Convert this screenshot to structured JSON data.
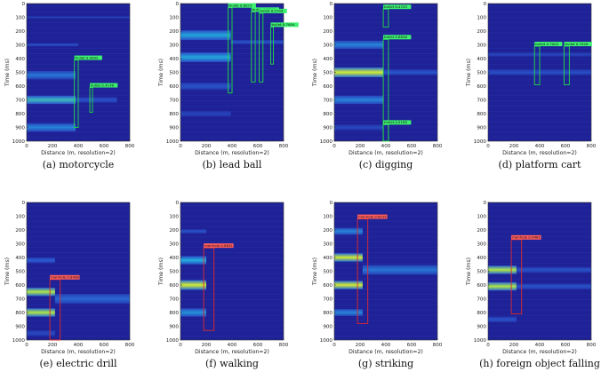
{
  "colors": {
    "background": "#1f2196",
    "stripe_dim": "#2b48c4",
    "stripe_mid": "#23a6d9",
    "stripe_hot": "#f2f21a",
    "box_green": "#22dd44",
    "box_red": "#e02a2a",
    "label_green": "#3df070",
    "label_red": "#ff5d5d"
  },
  "chart_data": [
    {
      "type": "heatmap",
      "caption": "(a)  motorcycle",
      "xlabel": "Distance (m, resolution=2)",
      "ylabel": "Time (ms)",
      "xlim": [
        0,
        800
      ],
      "ylim": [
        0,
        1000
      ],
      "xticks": [
        "0",
        "200",
        "400",
        "600",
        "800"
      ],
      "yticks": [
        "0",
        "100",
        "200",
        "300",
        "400",
        "500",
        "600",
        "700",
        "800",
        "900",
        "1000"
      ],
      "stripes": [
        {
          "t": 100,
          "h": 15,
          "x0": 0,
          "x1": 800,
          "level": 0.22
        },
        {
          "t": 300,
          "h": 20,
          "x0": 0,
          "x1": 400,
          "level": 0.3
        },
        {
          "t": 520,
          "h": 60,
          "x0": 0,
          "x1": 380,
          "level": 0.45
        },
        {
          "t": 700,
          "h": 60,
          "x0": 0,
          "x1": 380,
          "level": 0.7
        },
        {
          "t": 700,
          "h": 40,
          "x0": 380,
          "x1": 700,
          "level": 0.3
        },
        {
          "t": 900,
          "h": 60,
          "x0": 0,
          "x1": 380,
          "level": 0.5
        }
      ],
      "boxes": [
        {
          "label": "bullet 0.9992",
          "color": "green",
          "x0": 370,
          "x1": 400,
          "t0": 410,
          "t1": 900
        },
        {
          "label": "bullet 0.4146",
          "color": "green",
          "x0": 490,
          "x1": 510,
          "t0": 610,
          "t1": 790
        }
      ]
    },
    {
      "type": "heatmap",
      "caption": "(b)  lead ball",
      "xlabel": "Distance (m, resolution=2)",
      "ylabel": "Time (ms)",
      "xlim": [
        0,
        800
      ],
      "ylim": [
        0,
        1000
      ],
      "xticks": [
        "0",
        "200",
        "400",
        "600",
        "800"
      ],
      "yticks": [
        "0",
        "100",
        "200",
        "300",
        "400",
        "500",
        "600",
        "700",
        "800",
        "900",
        "1000"
      ],
      "stripes": [
        {
          "t": 230,
          "h": 70,
          "x0": 0,
          "x1": 390,
          "level": 0.62
        },
        {
          "t": 280,
          "h": 30,
          "x0": 390,
          "x1": 800,
          "level": 0.3
        },
        {
          "t": 390,
          "h": 70,
          "x0": 0,
          "x1": 390,
          "level": 0.62
        },
        {
          "t": 600,
          "h": 50,
          "x0": 0,
          "x1": 390,
          "level": 0.3
        },
        {
          "t": 800,
          "h": 40,
          "x0": 0,
          "x1": 390,
          "level": 0.22
        }
      ],
      "boxes": [
        {
          "label": "bullet 0.8073",
          "color": "green",
          "x0": 370,
          "x1": 400,
          "t0": 30,
          "t1": 650
        },
        {
          "label": "bullet 0.5746",
          "color": "green",
          "x0": 550,
          "x1": 580,
          "t0": 60,
          "t1": 570
        },
        {
          "label": "bullet 0.5749",
          "color": "green",
          "x0": 610,
          "x1": 640,
          "t0": 70,
          "t1": 570
        },
        {
          "label": "bullet 0.7004",
          "color": "green",
          "x0": 700,
          "x1": 720,
          "t0": 170,
          "t1": 440
        }
      ]
    },
    {
      "type": "heatmap",
      "caption": "(c)  digging",
      "xlabel": "Distance (m, resolution=2)",
      "ylabel": "Time (ms)",
      "xlim": [
        0,
        800
      ],
      "ylim": [
        0,
        1000
      ],
      "xticks": [
        "0",
        "200",
        "400",
        "600",
        "800"
      ],
      "yticks": [
        "0",
        "100",
        "200",
        "300",
        "400",
        "500",
        "600",
        "700",
        "800",
        "900",
        "1000"
      ],
      "stripes": [
        {
          "t": 300,
          "h": 60,
          "x0": 0,
          "x1": 380,
          "level": 0.5
        },
        {
          "t": 500,
          "h": 70,
          "x0": 0,
          "x1": 380,
          "level": 0.95
        },
        {
          "t": 500,
          "h": 40,
          "x0": 380,
          "x1": 800,
          "level": 0.32
        },
        {
          "t": 700,
          "h": 60,
          "x0": 0,
          "x1": 380,
          "level": 0.5
        },
        {
          "t": 900,
          "h": 40,
          "x0": 0,
          "x1": 380,
          "level": 0.25
        }
      ],
      "boxes": [
        {
          "label": "bullet 0.4703",
          "color": "green",
          "x0": 380,
          "x1": 420,
          "t0": 40,
          "t1": 170
        },
        {
          "label": "bullet 0.8846",
          "color": "green",
          "x0": 380,
          "x1": 420,
          "t0": 260,
          "t1": 1000
        },
        {
          "label": "bullet 0.5189",
          "color": "green",
          "x0": 380,
          "x1": 420,
          "t0": 880,
          "t1": 1000
        }
      ]
    },
    {
      "type": "heatmap",
      "caption": "(d)  platform cart",
      "xlabel": "Distance (m, resolution=2)",
      "ylabel": "Time (ms)",
      "xlim": [
        0,
        800
      ],
      "ylim": [
        0,
        1000
      ],
      "xticks": [
        "0",
        "200",
        "400",
        "600",
        "800"
      ],
      "yticks": [
        "0",
        "100",
        "200",
        "300",
        "400",
        "500",
        "600",
        "700",
        "800",
        "900",
        "1000"
      ],
      "stripes": [
        {
          "t": 370,
          "h": 30,
          "x0": 0,
          "x1": 800,
          "level": 0.22
        },
        {
          "t": 500,
          "h": 40,
          "x0": 0,
          "x1": 800,
          "level": 0.28
        }
      ],
      "boxes": [
        {
          "label": "bullet 0.7004",
          "color": "green",
          "x0": 360,
          "x1": 400,
          "t0": 310,
          "t1": 590
        },
        {
          "label": "bullet 0.7028",
          "color": "green",
          "x0": 590,
          "x1": 630,
          "t0": 310,
          "t1": 590
        }
      ]
    },
    {
      "type": "heatmap",
      "caption": "(e)  electric drill",
      "xlabel": "Distance (m, resolution=2)",
      "ylabel": "Time (ms)",
      "xlim": [
        0,
        800
      ],
      "ylim": [
        0,
        1000
      ],
      "xticks": [
        "0",
        "200",
        "400",
        "600",
        "800"
      ],
      "yticks": [
        "0",
        "100",
        "200",
        "300",
        "400",
        "500",
        "600",
        "700",
        "800",
        "900",
        "1000"
      ],
      "stripes": [
        {
          "t": 420,
          "h": 40,
          "x0": 0,
          "x1": 220,
          "level": 0.35
        },
        {
          "t": 650,
          "h": 60,
          "x0": 0,
          "x1": 220,
          "level": 0.9
        },
        {
          "t": 700,
          "h": 70,
          "x0": 220,
          "x1": 800,
          "level": 0.4
        },
        {
          "t": 800,
          "h": 60,
          "x0": 0,
          "x1": 220,
          "level": 0.9
        },
        {
          "t": 950,
          "h": 40,
          "x0": 0,
          "x1": 220,
          "level": 0.25
        }
      ],
      "boxes": [
        {
          "label": "manhole 0.8408",
          "color": "red",
          "x0": 180,
          "x1": 260,
          "t0": 560,
          "t1": 1000
        }
      ]
    },
    {
      "type": "heatmap",
      "caption": "(f)  walking",
      "xlabel": "Distance (m, resolution=2)",
      "ylabel": "Time (ms)",
      "xlim": [
        0,
        800
      ],
      "ylim": [
        0,
        1000
      ],
      "xticks": [
        "0",
        "200",
        "400",
        "600",
        "800"
      ],
      "yticks": [
        "0",
        "100",
        "200",
        "300",
        "400",
        "500",
        "600",
        "700",
        "800",
        "900",
        "1000"
      ],
      "stripes": [
        {
          "t": 210,
          "h": 30,
          "x0": 0,
          "x1": 200,
          "level": 0.3
        },
        {
          "t": 420,
          "h": 60,
          "x0": 0,
          "x1": 200,
          "level": 0.65
        },
        {
          "t": 600,
          "h": 70,
          "x0": 0,
          "x1": 200,
          "level": 0.95
        },
        {
          "t": 800,
          "h": 60,
          "x0": 0,
          "x1": 200,
          "level": 0.55
        }
      ],
      "boxes": [
        {
          "label": "manhole 0.8841",
          "color": "red",
          "x0": 180,
          "x1": 260,
          "t0": 330,
          "t1": 930
        }
      ]
    },
    {
      "type": "heatmap",
      "caption": "(g)  striking",
      "xlabel": "Distance (m, resolution=2)",
      "ylabel": "Time (ms)",
      "xlim": [
        0,
        800
      ],
      "ylim": [
        0,
        1000
      ],
      "xticks": [
        "0",
        "200",
        "400",
        "600",
        "800"
      ],
      "yticks": [
        "0",
        "100",
        "200",
        "300",
        "400",
        "500",
        "600",
        "700",
        "800",
        "900",
        "1000"
      ],
      "stripes": [
        {
          "t": 210,
          "h": 50,
          "x0": 0,
          "x1": 220,
          "level": 0.5
        },
        {
          "t": 400,
          "h": 60,
          "x0": 0,
          "x1": 220,
          "level": 0.95
        },
        {
          "t": 490,
          "h": 70,
          "x0": 220,
          "x1": 800,
          "level": 0.45
        },
        {
          "t": 600,
          "h": 60,
          "x0": 0,
          "x1": 220,
          "level": 0.95
        },
        {
          "t": 800,
          "h": 50,
          "x0": 0,
          "x1": 220,
          "level": 0.5
        }
      ],
      "boxes": [
        {
          "label": "manhole 0.8102",
          "color": "red",
          "x0": 180,
          "x1": 260,
          "t0": 120,
          "t1": 880
        }
      ]
    },
    {
      "type": "heatmap",
      "caption": "(h)  foreign object falling",
      "xlabel": "Distance (m, resolution=2)",
      "ylabel": "Time (ms)",
      "xlim": [
        0,
        800
      ],
      "ylim": [
        0,
        1000
      ],
      "xticks": [
        "0",
        "200",
        "400",
        "600",
        "800"
      ],
      "yticks": [
        "0",
        "100",
        "200",
        "300",
        "400",
        "500",
        "600",
        "700",
        "800",
        "900",
        "1000"
      ],
      "stripes": [
        {
          "t": 490,
          "h": 60,
          "x0": 0,
          "x1": 220,
          "level": 0.9
        },
        {
          "t": 490,
          "h": 40,
          "x0": 220,
          "x1": 800,
          "level": 0.3
        },
        {
          "t": 610,
          "h": 60,
          "x0": 0,
          "x1": 220,
          "level": 0.9
        },
        {
          "t": 610,
          "h": 40,
          "x0": 220,
          "x1": 800,
          "level": 0.3
        },
        {
          "t": 850,
          "h": 40,
          "x0": 0,
          "x1": 220,
          "level": 0.3
        }
      ],
      "boxes": [
        {
          "label": "manhole 0.9481",
          "color": "red",
          "x0": 180,
          "x1": 260,
          "t0": 270,
          "t1": 810
        }
      ]
    }
  ]
}
